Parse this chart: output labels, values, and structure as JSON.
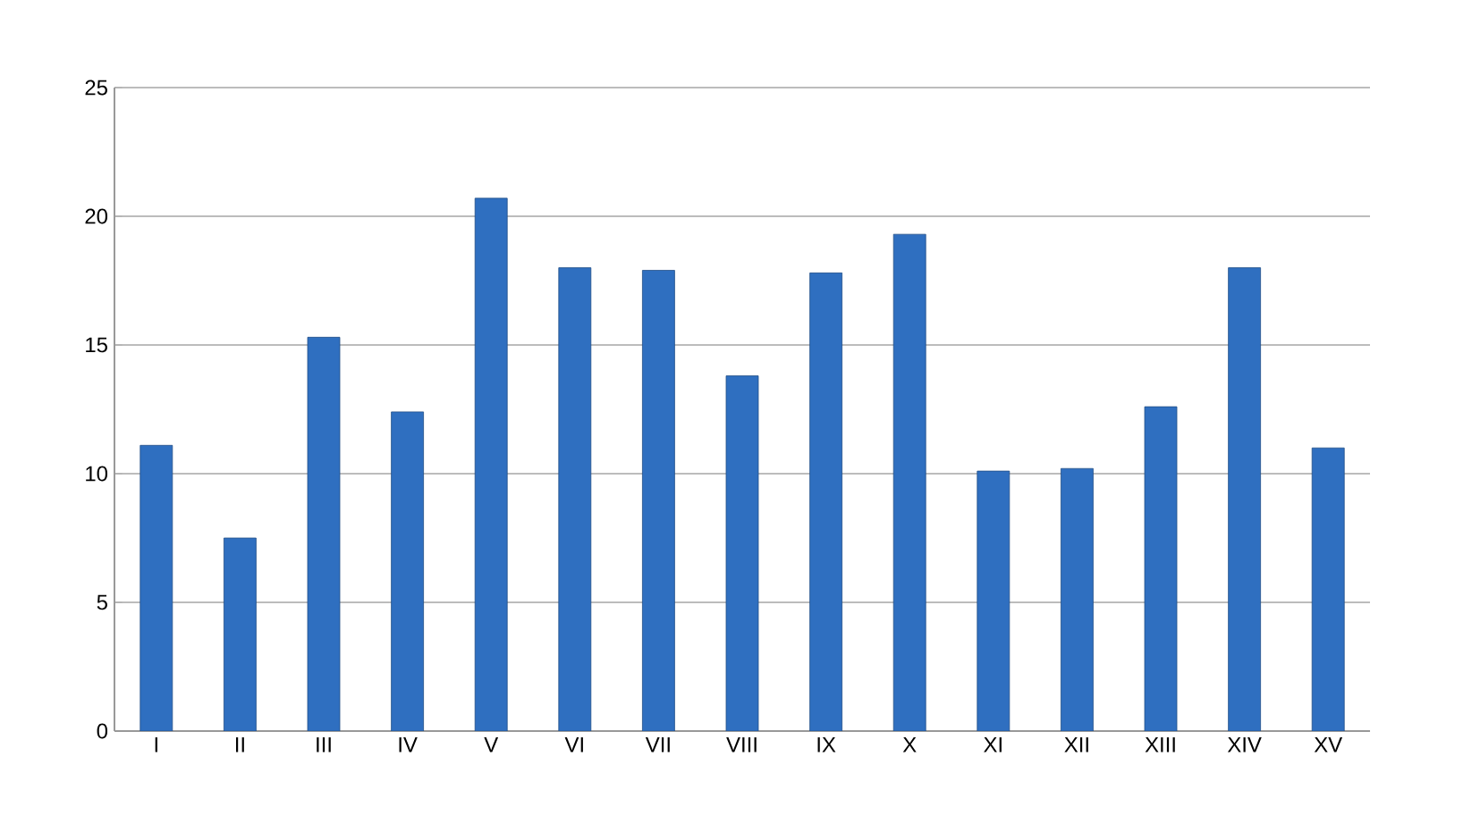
{
  "chart_data": {
    "type": "bar",
    "categories": [
      "I",
      "II",
      "III",
      "IV",
      "V",
      "VI",
      "VII",
      "VIII",
      "IX",
      "X",
      "XI",
      "XII",
      "XIII",
      "XIV",
      "XV"
    ],
    "values": [
      11.1,
      7.5,
      15.3,
      12.4,
      20.7,
      18.0,
      17.9,
      13.8,
      17.8,
      19.3,
      10.1,
      10.2,
      12.6,
      18.0,
      11.0
    ],
    "color": "#2f6fc0",
    "ylim": [
      0,
      25
    ],
    "yticks": [
      0,
      5,
      10,
      15,
      20,
      25
    ],
    "grid": "y"
  }
}
